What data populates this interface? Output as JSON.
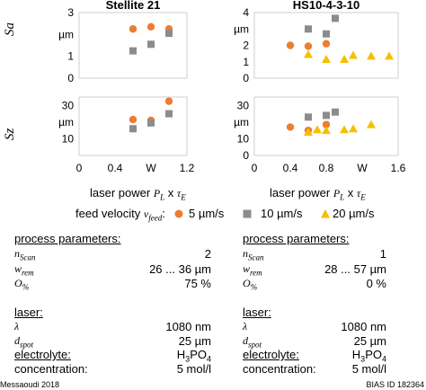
{
  "chart_data": [
    {
      "type": "scatter",
      "title": "Stellite 21",
      "ylabel": "Sa",
      "yunit": "µm",
      "xlim": [
        0,
        1.2
      ],
      "ylim": [
        0,
        3
      ],
      "yticks": [
        0,
        1,
        2,
        3
      ],
      "series": [
        {
          "name": "5 µm/s",
          "color": "#ED7D31",
          "marker": "circle",
          "points": [
            [
              0.6,
              2.25
            ],
            [
              0.8,
              2.35
            ],
            [
              1.0,
              2.25
            ]
          ]
        },
        {
          "name": "10 µm/s",
          "color": "#8C8C8C",
          "marker": "square",
          "points": [
            [
              0.6,
              1.25
            ],
            [
              0.8,
              1.55
            ],
            [
              1.0,
              2.05
            ]
          ]
        }
      ]
    },
    {
      "type": "scatter",
      "title": "HS10-4-3-10",
      "ylabel": "Sa",
      "yunit": "µm",
      "xlim": [
        0,
        1.6
      ],
      "ylim": [
        0,
        4
      ],
      "yticks": [
        0,
        1,
        2,
        3,
        4
      ],
      "series": [
        {
          "name": "5 µm/s",
          "color": "#ED7D31",
          "marker": "circle",
          "points": [
            [
              0.4,
              2.0
            ],
            [
              0.6,
              1.95
            ],
            [
              0.8,
              2.1
            ]
          ]
        },
        {
          "name": "10 µm/s",
          "color": "#8C8C8C",
          "marker": "square",
          "points": [
            [
              0.6,
              3.0
            ],
            [
              0.8,
              2.7
            ],
            [
              0.9,
              3.65
            ]
          ]
        },
        {
          "name": "20 µm/s",
          "color": "#F5C000",
          "marker": "triangle",
          "points": [
            [
              0.6,
              1.45
            ],
            [
              0.8,
              1.15
            ],
            [
              1.0,
              1.15
            ],
            [
              1.1,
              1.4
            ],
            [
              1.3,
              1.35
            ],
            [
              1.5,
              1.35
            ]
          ]
        }
      ]
    },
    {
      "type": "scatter",
      "ylabel": "Sz",
      "yunit": "µm",
      "xlim": [
        0,
        1.2
      ],
      "ylim": [
        0,
        35
      ],
      "yticks": [
        10,
        20,
        30
      ],
      "xticks": [
        "0",
        "0.4",
        "W",
        "1.2"
      ],
      "xticks_values": [
        0,
        0.4,
        0.8,
        1.2
      ],
      "series": [
        {
          "name": "5 µm/s",
          "color": "#ED7D31",
          "marker": "circle",
          "points": [
            [
              0.6,
              21.5
            ],
            [
              0.8,
              21.0
            ],
            [
              1.0,
              32.5
            ]
          ]
        },
        {
          "name": "10 µm/s",
          "color": "#8C8C8C",
          "marker": "square",
          "points": [
            [
              0.6,
              16.0
            ],
            [
              0.8,
              19.5
            ],
            [
              1.0,
              25.0
            ]
          ]
        }
      ]
    },
    {
      "type": "scatter",
      "ylabel": "Sz",
      "yunit": "µm",
      "xlim": [
        0,
        1.6
      ],
      "ylim": [
        0,
        35
      ],
      "yticks": [
        0,
        10,
        20,
        30
      ],
      "xticks": [
        "0",
        "0.4",
        "0.8",
        "W",
        "1.6"
      ],
      "xticks_values": [
        0,
        0.4,
        0.8,
        1.2,
        1.6
      ],
      "series": [
        {
          "name": "5 µm/s",
          "color": "#ED7D31",
          "marker": "circle",
          "points": [
            [
              0.4,
              17.0
            ],
            [
              0.6,
              15.0
            ],
            [
              0.8,
              18.5
            ]
          ]
        },
        {
          "name": "10 µm/s",
          "color": "#8C8C8C",
          "marker": "square",
          "points": [
            [
              0.6,
              23.0
            ],
            [
              0.8,
              24.0
            ],
            [
              0.9,
              26.0
            ]
          ]
        },
        {
          "name": "20 µm/s",
          "color": "#F5C000",
          "marker": "triangle",
          "points": [
            [
              0.6,
              14.0
            ],
            [
              0.7,
              15.5
            ],
            [
              0.8,
              15.0
            ],
            [
              1.0,
              15.5
            ],
            [
              1.1,
              16.0
            ],
            [
              1.3,
              18.5
            ]
          ]
        }
      ]
    }
  ],
  "xaxis": {
    "label_left": "laser power ",
    "label_var": "P",
    "label_var_sub": "L",
    "label_mid": " x ",
    "label_var2": "τ",
    "label_var2_sub": "E"
  },
  "legend": {
    "label": "feed velocity ",
    "label_var": "v",
    "label_var_sub": "feed",
    "label_colon": ":",
    "items": [
      "5 µm/s",
      "10 µm/s",
      "20 µm/s"
    ]
  },
  "params": {
    "left": {
      "header": "process parameters:",
      "n_label": "n",
      "n_sub": "Scan",
      "n_value": "2",
      "w_label": "w",
      "w_sub": "rem",
      "w_value": "26 ... 36 µm",
      "o_label": "O",
      "o_sub": "%",
      "o_value": "75 %",
      "laser_header": "laser:",
      "lambda_label": "λ",
      "lambda_value": "1080 nm",
      "d_label": "d",
      "d_sub": "spot",
      "d_value": "25 µm",
      "electrolyte_label": "electrolyte:",
      "electrolyte_value_main": "H",
      "electrolyte_value_sub1": "3",
      "electrolyte_value_mid": "PO",
      "electrolyte_value_sub2": "4",
      "concentration_label": "concentration:",
      "concentration_value": "5 mol/l"
    },
    "right": {
      "header": "process parameters:",
      "n_label": "n",
      "n_sub": "Scan",
      "n_value": "1",
      "w_label": "w",
      "w_sub": "rem",
      "w_value": "28 ... 57 µm",
      "o_label": "O",
      "o_sub": "%",
      "o_value": "0 %",
      "laser_header": "laser:",
      "lambda_label": "λ",
      "lambda_value": "1080 nm",
      "d_label": "d",
      "d_sub": "spot",
      "d_value": "25 µm",
      "electrolyte_label": "electrolyte:",
      "electrolyte_value_main": "H",
      "electrolyte_value_sub1": "3",
      "electrolyte_value_mid": "PO",
      "electrolyte_value_sub2": "4",
      "concentration_label": "concentration:",
      "concentration_value": "5 mol/l"
    }
  },
  "footer": {
    "left": "Messaoudi 2018",
    "right": "BIAS ID 182364"
  }
}
